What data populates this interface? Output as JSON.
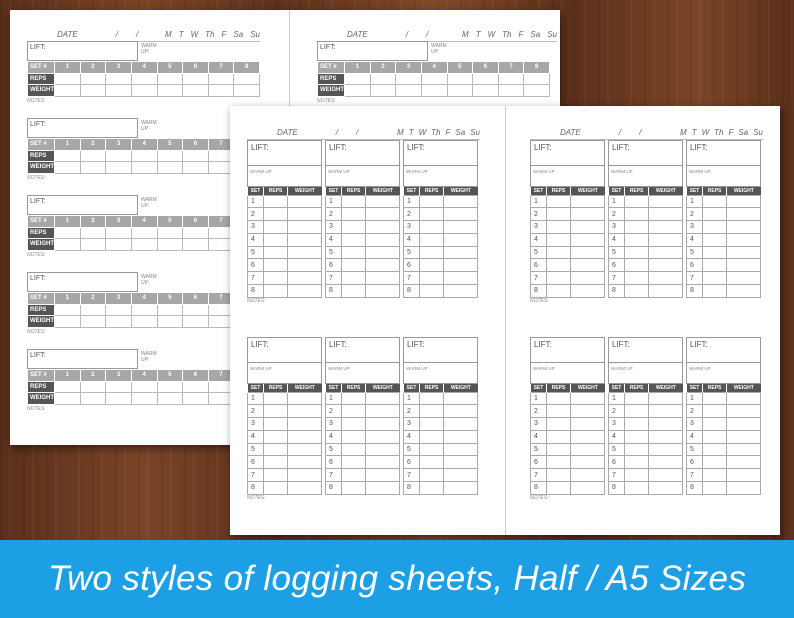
{
  "sheet_labels": {
    "date": "DATE",
    "slash": "/",
    "days": [
      "M",
      "T",
      "W",
      "Th",
      "F",
      "Sa",
      "Su"
    ],
    "lift": "LIFT:",
    "warm_up_style1": "WARM UP:",
    "warm_up_style2": "WARM UP",
    "notes": "NOTES:"
  },
  "style1_grid": {
    "row_labels": [
      "SET #",
      "REPS",
      "WEIGHT"
    ],
    "set_numbers": [
      "1",
      "2",
      "3",
      "4",
      "5",
      "6",
      "7",
      "8"
    ]
  },
  "style2_table": {
    "headers": [
      "SET",
      "REPS",
      "WEIGHT"
    ],
    "rows": [
      "1",
      "2",
      "3",
      "4",
      "5",
      "6",
      "7",
      "8"
    ]
  },
  "banner": {
    "text": "Two styles of logging sheets, Half / A5 Sizes",
    "color": "#1d9fe6"
  }
}
